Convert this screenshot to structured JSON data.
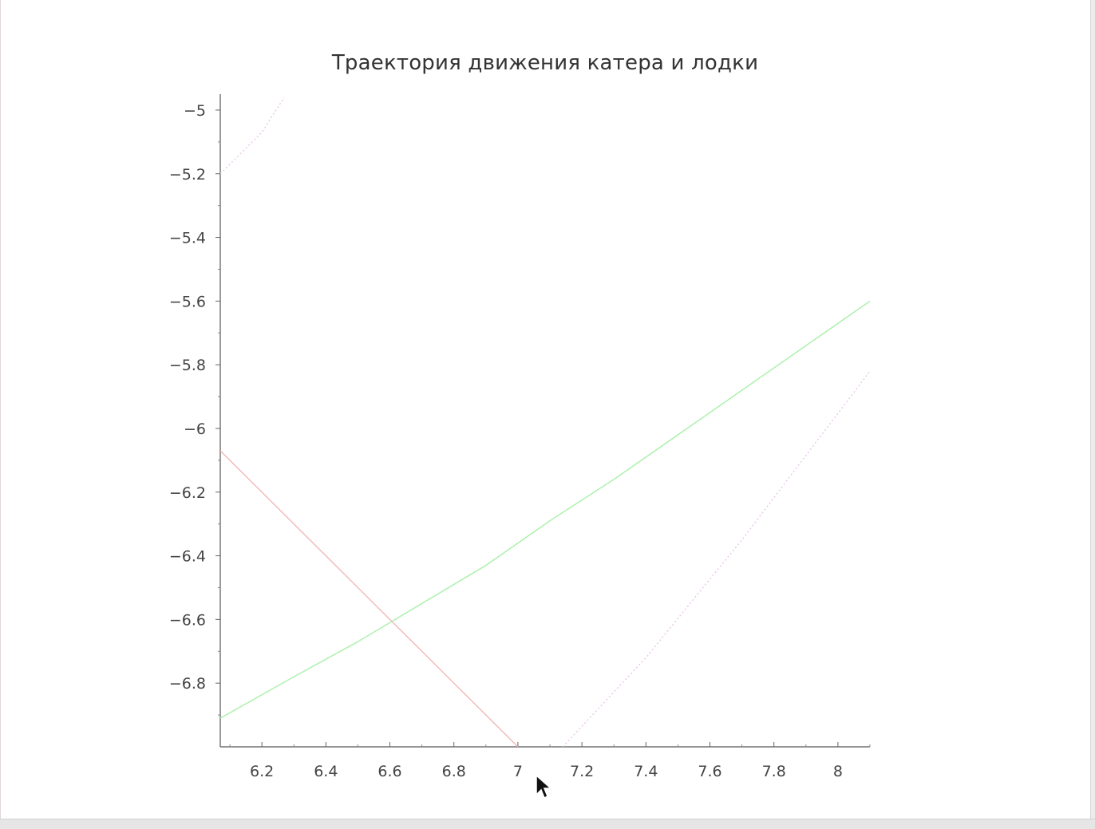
{
  "chart_data": {
    "type": "line",
    "title": "Траектория движения катера и лодки",
    "xlabel": "",
    "ylabel": "",
    "xlim": [
      6.07,
      8.1
    ],
    "ylim": [
      -7.0,
      -4.95
    ],
    "x_ticks": [
      6.2,
      6.4,
      6.6,
      6.8,
      7.0,
      7.2,
      7.4,
      7.6,
      7.8,
      8.0
    ],
    "x_tick_labels": [
      "6.2",
      "6.4",
      "6.6",
      "6.8",
      "7",
      "7.2",
      "7.4",
      "7.6",
      "7.8",
      "8"
    ],
    "y_ticks": [
      -5.0,
      -5.2,
      -5.4,
      -5.6,
      -5.8,
      -6.0,
      -6.2,
      -6.4,
      -6.6,
      -6.8
    ],
    "y_tick_labels": [
      "−5",
      "−5.2",
      "−5.4",
      "−5.6",
      "−5.8",
      "−6",
      "−6.2",
      "−6.4",
      "−6.6",
      "−6.8"
    ],
    "grid": false,
    "series": [
      {
        "color": "#a8f0a8",
        "style": "solid",
        "x": [
          6.07,
          6.3,
          6.5,
          6.7,
          6.9,
          7.1,
          7.3,
          7.5,
          7.7,
          7.9,
          8.1
        ],
        "y": [
          -6.91,
          -6.78,
          -6.67,
          -6.55,
          -6.43,
          -6.29,
          -6.16,
          -6.02,
          -5.88,
          -5.74,
          -5.6
        ]
      },
      {
        "color": "#f0b8b8",
        "style": "solid",
        "x": [
          6.07,
          7.0
        ],
        "y": [
          -6.07,
          -7.0
        ]
      },
      {
        "color": "#e8c8e8",
        "style": "dotted",
        "x": [
          7.14,
          7.4,
          7.7,
          8.1
        ],
        "y": [
          -7.0,
          -6.72,
          -6.35,
          -5.82
        ]
      },
      {
        "color": "#e8c8e8",
        "style": "dotted",
        "x": [
          6.07,
          6.2,
          6.27
        ],
        "y": [
          -5.2,
          -5.07,
          -4.96
        ]
      }
    ]
  }
}
